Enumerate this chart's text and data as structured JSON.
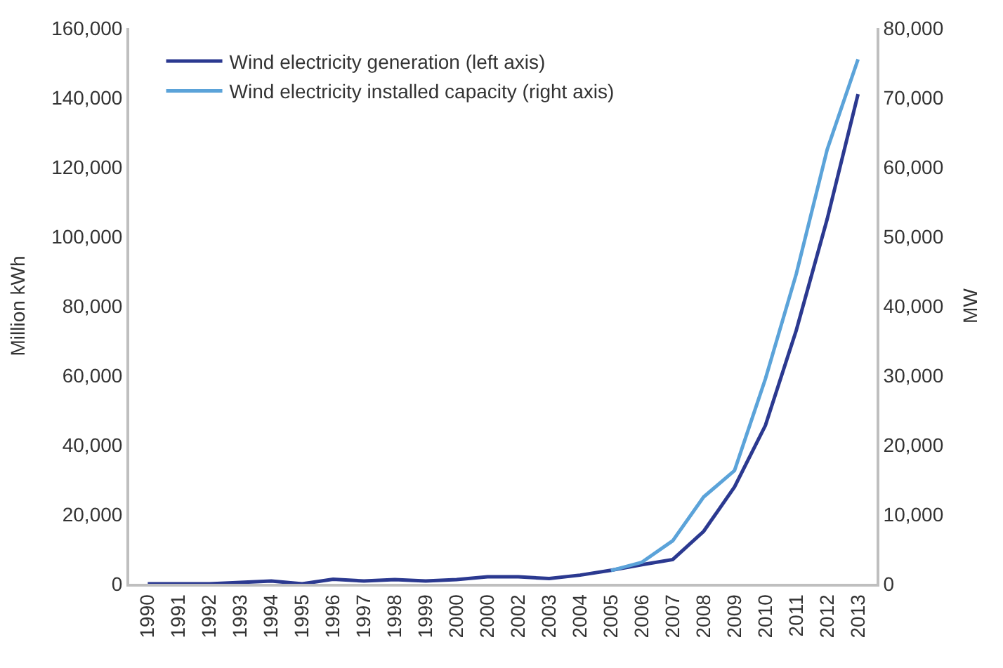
{
  "chart_data": {
    "type": "line",
    "ylabel": "Million kWh",
    "y2label": "MW",
    "categories": [
      "1990",
      "1991",
      "1992",
      "1993",
      "1994",
      "1995",
      "1996",
      "1997",
      "1998",
      "1999",
      "2000",
      "2000",
      "2002",
      "2003",
      "2004",
      "2005",
      "2006",
      "2007",
      "2008",
      "2009",
      "2010",
      "2011",
      "2012",
      "2013"
    ],
    "series": [
      {
        "name": "Wind electricity generation (left axis)",
        "color": "#2b3990",
        "values": [
          0,
          0,
          0,
          400,
          800,
          0,
          1300,
          800,
          1200,
          800,
          1200,
          2000,
          2000,
          1500,
          2500,
          3900,
          5500,
          7000,
          15100,
          27900,
          45600,
          73000,
          105000,
          141000
        ]
      },
      {
        "name": "Wind electricity installed capacity (right axis)",
        "color": "#5ba3d9",
        "axis": "y2",
        "values": [
          null,
          null,
          null,
          null,
          null,
          null,
          null,
          null,
          null,
          null,
          null,
          null,
          null,
          null,
          null,
          1900,
          3100,
          6200,
          12500,
          16300,
          29500,
          44600,
          62500,
          75500
        ]
      }
    ],
    "ylim": [
      0,
      160000
    ],
    "yticks": [
      {
        "value": 0,
        "label": "0"
      },
      {
        "value": 20000,
        "label": "20,000"
      },
      {
        "value": 40000,
        "label": "40,000"
      },
      {
        "value": 60000,
        "label": "60,000"
      },
      {
        "value": 80000,
        "label": "80,000"
      },
      {
        "value": 100000,
        "label": "100,000"
      },
      {
        "value": 120000,
        "label": "120,000"
      },
      {
        "value": 140000,
        "label": "140,000"
      },
      {
        "value": 160000,
        "label": "160,000"
      }
    ],
    "y2lim": [
      0,
      80000
    ],
    "y2ticks": [
      {
        "value": 0,
        "label": "0"
      },
      {
        "value": 10000,
        "label": "10,000"
      },
      {
        "value": 20000,
        "label": "20,000"
      },
      {
        "value": 30000,
        "label": "30,000"
      },
      {
        "value": 40000,
        "label": "40,000"
      },
      {
        "value": 50000,
        "label": "50,000"
      },
      {
        "value": 60000,
        "label": "60,000"
      },
      {
        "value": 70000,
        "label": "70,000"
      },
      {
        "value": 80000,
        "label": "80,000"
      }
    ],
    "legend": "top left",
    "marker": "none",
    "line_style": "solid"
  }
}
